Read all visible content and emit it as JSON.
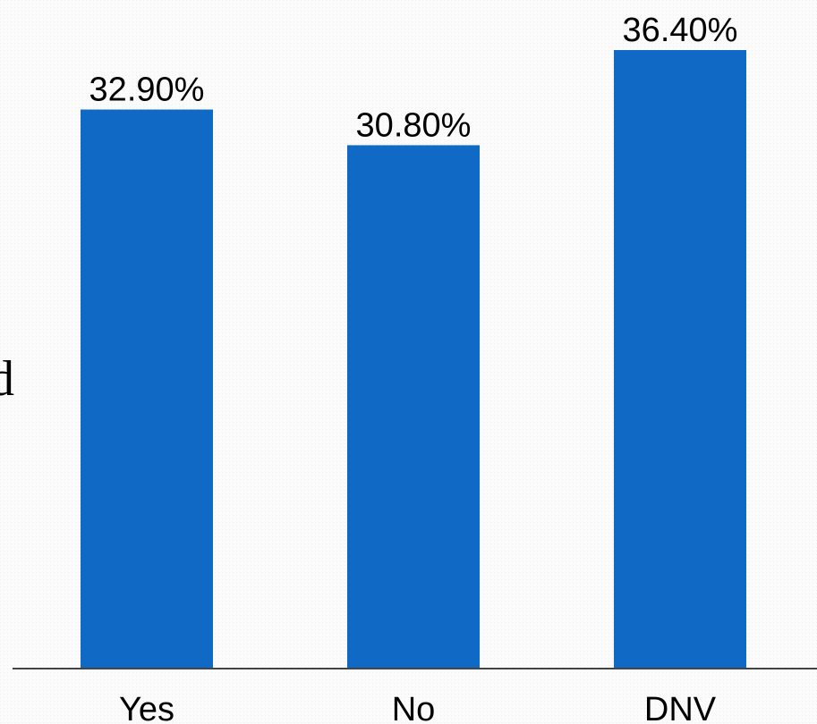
{
  "chart_data": {
    "type": "bar",
    "categories": [
      "Yes",
      "No",
      "DNV"
    ],
    "values": [
      32.9,
      30.8,
      36.4
    ],
    "data_labels": [
      "32.90%",
      "30.80%",
      "36.40%"
    ],
    "title": "",
    "xlabel": "",
    "ylabel": "",
    "ylim": [
      0,
      37.8
    ],
    "grid": false,
    "legend": "none",
    "bar_color": "#106ac5",
    "axis_color": "#444444"
  },
  "edge_fragment": "d"
}
